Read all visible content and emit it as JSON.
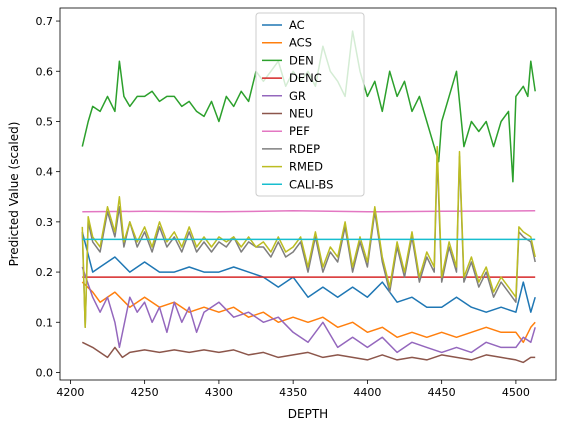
{
  "chart_data": {
    "type": "line",
    "title": "",
    "xlabel": "DEPTH",
    "ylabel": "Predicted Value (scaled)",
    "xlim": [
      4193,
      4527
    ],
    "ylim": [
      -0.015,
      0.726
    ],
    "xticks": [
      4200,
      4250,
      4300,
      4350,
      4400,
      4450,
      4500
    ],
    "yticks": [
      0.0,
      0.1,
      0.2,
      0.3,
      0.4,
      0.5,
      0.6,
      0.7
    ],
    "xtick_labels": [
      "4200",
      "4250",
      "4300",
      "4350",
      "4400",
      "4450",
      "4500"
    ],
    "ytick_labels": [
      "0.0",
      "0.1",
      "0.2",
      "0.3",
      "0.4",
      "0.5",
      "0.6",
      "0.7"
    ],
    "grid": false,
    "legend_position": "upper-center",
    "series": [
      {
        "name": "AC",
        "color": "#1f77b4",
        "x": [
          4208,
          4215,
          4220,
          4230,
          4240,
          4250,
          4260,
          4270,
          4280,
          4290,
          4300,
          4310,
          4320,
          4330,
          4340,
          4350,
          4360,
          4370,
          4380,
          4390,
          4400,
          4410,
          4420,
          4430,
          4440,
          4450,
          4460,
          4470,
          4480,
          4490,
          4500,
          4505,
          4510,
          4513
        ],
        "y": [
          0.28,
          0.2,
          0.21,
          0.23,
          0.2,
          0.22,
          0.2,
          0.2,
          0.21,
          0.2,
          0.2,
          0.21,
          0.2,
          0.19,
          0.17,
          0.19,
          0.15,
          0.17,
          0.15,
          0.17,
          0.15,
          0.18,
          0.14,
          0.15,
          0.13,
          0.13,
          0.15,
          0.13,
          0.12,
          0.13,
          0.12,
          0.18,
          0.12,
          0.15
        ]
      },
      {
        "name": "ACS",
        "color": "#ff7f0e",
        "x": [
          4208,
          4215,
          4220,
          4230,
          4240,
          4250,
          4260,
          4270,
          4280,
          4290,
          4300,
          4310,
          4320,
          4330,
          4340,
          4350,
          4360,
          4370,
          4380,
          4390,
          4400,
          4410,
          4420,
          4430,
          4440,
          4450,
          4460,
          4470,
          4480,
          4490,
          4500,
          4505,
          4510,
          4513
        ],
        "y": [
          0.18,
          0.16,
          0.14,
          0.16,
          0.13,
          0.15,
          0.13,
          0.14,
          0.12,
          0.13,
          0.12,
          0.13,
          0.11,
          0.12,
          0.1,
          0.11,
          0.1,
          0.11,
          0.09,
          0.1,
          0.08,
          0.09,
          0.07,
          0.08,
          0.07,
          0.08,
          0.07,
          0.08,
          0.09,
          0.08,
          0.08,
          0.06,
          0.09,
          0.1
        ]
      },
      {
        "name": "DEN",
        "color": "#2ca02c",
        "x": [
          4208,
          4212,
          4215,
          4220,
          4225,
          4230,
          4233,
          4236,
          4240,
          4245,
          4250,
          4255,
          4260,
          4265,
          4270,
          4275,
          4280,
          4285,
          4290,
          4295,
          4300,
          4305,
          4310,
          4315,
          4320,
          4325,
          4330,
          4335,
          4340,
          4345,
          4350,
          4355,
          4360,
          4365,
          4370,
          4375,
          4380,
          4385,
          4390,
          4395,
          4400,
          4405,
          4410,
          4415,
          4420,
          4425,
          4430,
          4435,
          4440,
          4445,
          4448,
          4450,
          4455,
          4460,
          4465,
          4470,
          4475,
          4480,
          4485,
          4490,
          4495,
          4498,
          4500,
          4505,
          4508,
          4510,
          4513
        ],
        "y": [
          0.45,
          0.5,
          0.53,
          0.52,
          0.55,
          0.52,
          0.62,
          0.55,
          0.53,
          0.55,
          0.55,
          0.56,
          0.54,
          0.55,
          0.55,
          0.53,
          0.54,
          0.52,
          0.51,
          0.54,
          0.5,
          0.55,
          0.53,
          0.56,
          0.54,
          0.6,
          0.58,
          0.6,
          0.62,
          0.57,
          0.6,
          0.58,
          0.6,
          0.57,
          0.65,
          0.6,
          0.58,
          0.55,
          0.68,
          0.6,
          0.55,
          0.58,
          0.52,
          0.6,
          0.55,
          0.58,
          0.52,
          0.55,
          0.5,
          0.45,
          0.42,
          0.5,
          0.55,
          0.6,
          0.45,
          0.5,
          0.48,
          0.5,
          0.45,
          0.5,
          0.52,
          0.38,
          0.55,
          0.57,
          0.55,
          0.62,
          0.56
        ]
      },
      {
        "name": "DENC",
        "color": "#d62728",
        "x": [
          4208,
          4250,
          4300,
          4350,
          4400,
          4450,
          4513
        ],
        "y": [
          0.19,
          0.19,
          0.19,
          0.19,
          0.19,
          0.19,
          0.19
        ]
      },
      {
        "name": "GR",
        "color": "#9467bd",
        "x": [
          4208,
          4215,
          4220,
          4225,
          4230,
          4233,
          4240,
          4245,
          4250,
          4255,
          4260,
          4265,
          4270,
          4275,
          4280,
          4285,
          4290,
          4300,
          4310,
          4320,
          4330,
          4340,
          4350,
          4360,
          4370,
          4380,
          4390,
          4400,
          4410,
          4420,
          4430,
          4440,
          4450,
          4460,
          4470,
          4480,
          4490,
          4500,
          4505,
          4510,
          4513
        ],
        "y": [
          0.21,
          0.15,
          0.12,
          0.15,
          0.1,
          0.05,
          0.15,
          0.12,
          0.14,
          0.1,
          0.13,
          0.08,
          0.14,
          0.1,
          0.13,
          0.08,
          0.12,
          0.14,
          0.11,
          0.12,
          0.1,
          0.11,
          0.08,
          0.06,
          0.1,
          0.05,
          0.07,
          0.05,
          0.07,
          0.04,
          0.06,
          0.05,
          0.04,
          0.05,
          0.04,
          0.06,
          0.05,
          0.05,
          0.07,
          0.06,
          0.09
        ]
      },
      {
        "name": "NEU",
        "color": "#8c564b",
        "x": [
          4208,
          4215,
          4220,
          4225,
          4230,
          4235,
          4240,
          4250,
          4260,
          4270,
          4280,
          4290,
          4300,
          4310,
          4320,
          4330,
          4340,
          4350,
          4360,
          4370,
          4380,
          4390,
          4400,
          4410,
          4420,
          4430,
          4440,
          4450,
          4460,
          4470,
          4480,
          4490,
          4500,
          4505,
          4510,
          4513
        ],
        "y": [
          0.06,
          0.05,
          0.04,
          0.03,
          0.05,
          0.03,
          0.04,
          0.045,
          0.04,
          0.045,
          0.04,
          0.045,
          0.04,
          0.045,
          0.035,
          0.04,
          0.03,
          0.035,
          0.04,
          0.03,
          0.035,
          0.03,
          0.025,
          0.035,
          0.025,
          0.03,
          0.025,
          0.035,
          0.03,
          0.025,
          0.035,
          0.03,
          0.025,
          0.02,
          0.03,
          0.03
        ]
      },
      {
        "name": "PEF",
        "color": "#e377c2",
        "x": [
          4208,
          4250,
          4300,
          4350,
          4400,
          4450,
          4513
        ],
        "y": [
          0.32,
          0.321,
          0.32,
          0.322,
          0.32,
          0.321,
          0.322
        ]
      },
      {
        "name": "RDEP",
        "color": "#7f7f7f",
        "x": [
          4208,
          4210,
          4212,
          4215,
          4220,
          4225,
          4230,
          4233,
          4236,
          4240,
          4245,
          4250,
          4255,
          4260,
          4265,
          4270,
          4275,
          4280,
          4285,
          4290,
          4295,
          4300,
          4305,
          4310,
          4315,
          4320,
          4325,
          4330,
          4335,
          4340,
          4345,
          4350,
          4355,
          4360,
          4365,
          4370,
          4375,
          4380,
          4385,
          4390,
          4395,
          4400,
          4405,
          4410,
          4415,
          4420,
          4425,
          4430,
          4435,
          4440,
          4445,
          4447,
          4450,
          4455,
          4460,
          4462,
          4465,
          4470,
          4475,
          4480,
          4485,
          4490,
          4495,
          4500,
          4502,
          4505,
          4510,
          4513
        ],
        "y": [
          0.28,
          0.09,
          0.3,
          0.26,
          0.24,
          0.32,
          0.27,
          0.33,
          0.25,
          0.3,
          0.25,
          0.28,
          0.24,
          0.29,
          0.25,
          0.27,
          0.24,
          0.28,
          0.24,
          0.26,
          0.24,
          0.26,
          0.25,
          0.27,
          0.24,
          0.26,
          0.25,
          0.25,
          0.23,
          0.26,
          0.23,
          0.24,
          0.26,
          0.2,
          0.27,
          0.2,
          0.24,
          0.22,
          0.29,
          0.2,
          0.26,
          0.21,
          0.32,
          0.22,
          0.16,
          0.25,
          0.19,
          0.27,
          0.18,
          0.23,
          0.2,
          0.43,
          0.18,
          0.25,
          0.2,
          0.43,
          0.18,
          0.22,
          0.17,
          0.2,
          0.15,
          0.18,
          0.16,
          0.14,
          0.28,
          0.27,
          0.26,
          0.22
        ]
      },
      {
        "name": "RMED",
        "color": "#bcbd22",
        "x": [
          4208,
          4210,
          4212,
          4215,
          4220,
          4225,
          4230,
          4233,
          4236,
          4240,
          4245,
          4250,
          4255,
          4260,
          4265,
          4270,
          4275,
          4280,
          4285,
          4290,
          4295,
          4300,
          4305,
          4310,
          4315,
          4320,
          4325,
          4330,
          4335,
          4340,
          4345,
          4350,
          4355,
          4360,
          4365,
          4370,
          4375,
          4380,
          4385,
          4390,
          4395,
          4400,
          4405,
          4410,
          4415,
          4420,
          4425,
          4430,
          4435,
          4440,
          4445,
          4447,
          4450,
          4455,
          4460,
          4462,
          4465,
          4470,
          4475,
          4480,
          4485,
          4490,
          4495,
          4500,
          4502,
          4505,
          4510,
          4513
        ],
        "y": [
          0.29,
          0.09,
          0.31,
          0.27,
          0.25,
          0.33,
          0.28,
          0.35,
          0.26,
          0.3,
          0.26,
          0.29,
          0.25,
          0.3,
          0.26,
          0.28,
          0.25,
          0.29,
          0.25,
          0.27,
          0.25,
          0.27,
          0.26,
          0.27,
          0.25,
          0.27,
          0.25,
          0.26,
          0.24,
          0.27,
          0.24,
          0.25,
          0.27,
          0.21,
          0.28,
          0.21,
          0.25,
          0.23,
          0.3,
          0.21,
          0.27,
          0.22,
          0.33,
          0.23,
          0.17,
          0.26,
          0.2,
          0.28,
          0.19,
          0.24,
          0.21,
          0.45,
          0.19,
          0.26,
          0.21,
          0.44,
          0.19,
          0.23,
          0.18,
          0.21,
          0.16,
          0.19,
          0.17,
          0.15,
          0.29,
          0.28,
          0.27,
          0.23
        ]
      },
      {
        "name": "CALI-BS",
        "color": "#17becf",
        "x": [
          4208,
          4250,
          4300,
          4350,
          4400,
          4450,
          4513
        ],
        "y": [
          0.265,
          0.265,
          0.265,
          0.265,
          0.265,
          0.265,
          0.265
        ]
      }
    ]
  }
}
